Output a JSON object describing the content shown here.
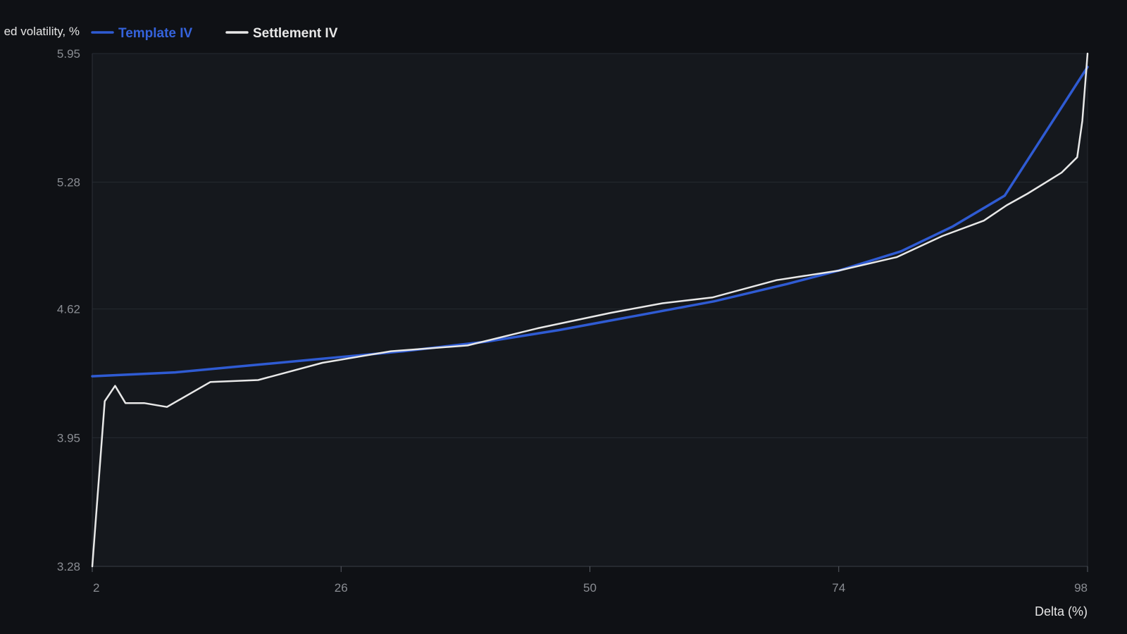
{
  "chart_data": {
    "type": "line",
    "ylabel": "ed volatility, %",
    "xlabel": "Delta (%)",
    "x_ticks": [
      "2",
      "26",
      "50",
      "74",
      "98"
    ],
    "y_ticks": [
      "5.95",
      "5.28",
      "4.62",
      "3.95",
      "3.28"
    ],
    "xlim": [
      2,
      98
    ],
    "ylim": [
      3.28,
      5.95
    ],
    "grid": true,
    "legend_position": "top-left",
    "series": [
      {
        "name": "Template IV",
        "color": "#2f5bd3",
        "x": [
          2,
          10,
          16,
          24,
          32,
          40,
          47,
          55,
          62,
          69,
          74,
          80,
          85,
          90,
          98
        ],
        "y": [
          4.27,
          4.29,
          4.32,
          4.36,
          4.4,
          4.45,
          4.51,
          4.59,
          4.66,
          4.75,
          4.82,
          4.92,
          5.05,
          5.21,
          5.88
        ]
      },
      {
        "name": "Settlement IV",
        "color": "#e8e8e8",
        "x": [
          2,
          3.2,
          4.2,
          5.2,
          7,
          9.2,
          13.4,
          18,
          24.2,
          30.8,
          38.2,
          45,
          52,
          57,
          61.8,
          68,
          74,
          79.6,
          84,
          88,
          90.2,
          92.2,
          94,
          95.5,
          97,
          97.5,
          98
        ],
        "y": [
          3.28,
          4.14,
          4.22,
          4.13,
          4.13,
          4.11,
          4.24,
          4.25,
          4.34,
          4.4,
          4.43,
          4.52,
          4.6,
          4.65,
          4.68,
          4.77,
          4.82,
          4.89,
          5.0,
          5.08,
          5.16,
          5.22,
          5.28,
          5.33,
          5.41,
          5.6,
          5.95
        ]
      }
    ]
  }
}
